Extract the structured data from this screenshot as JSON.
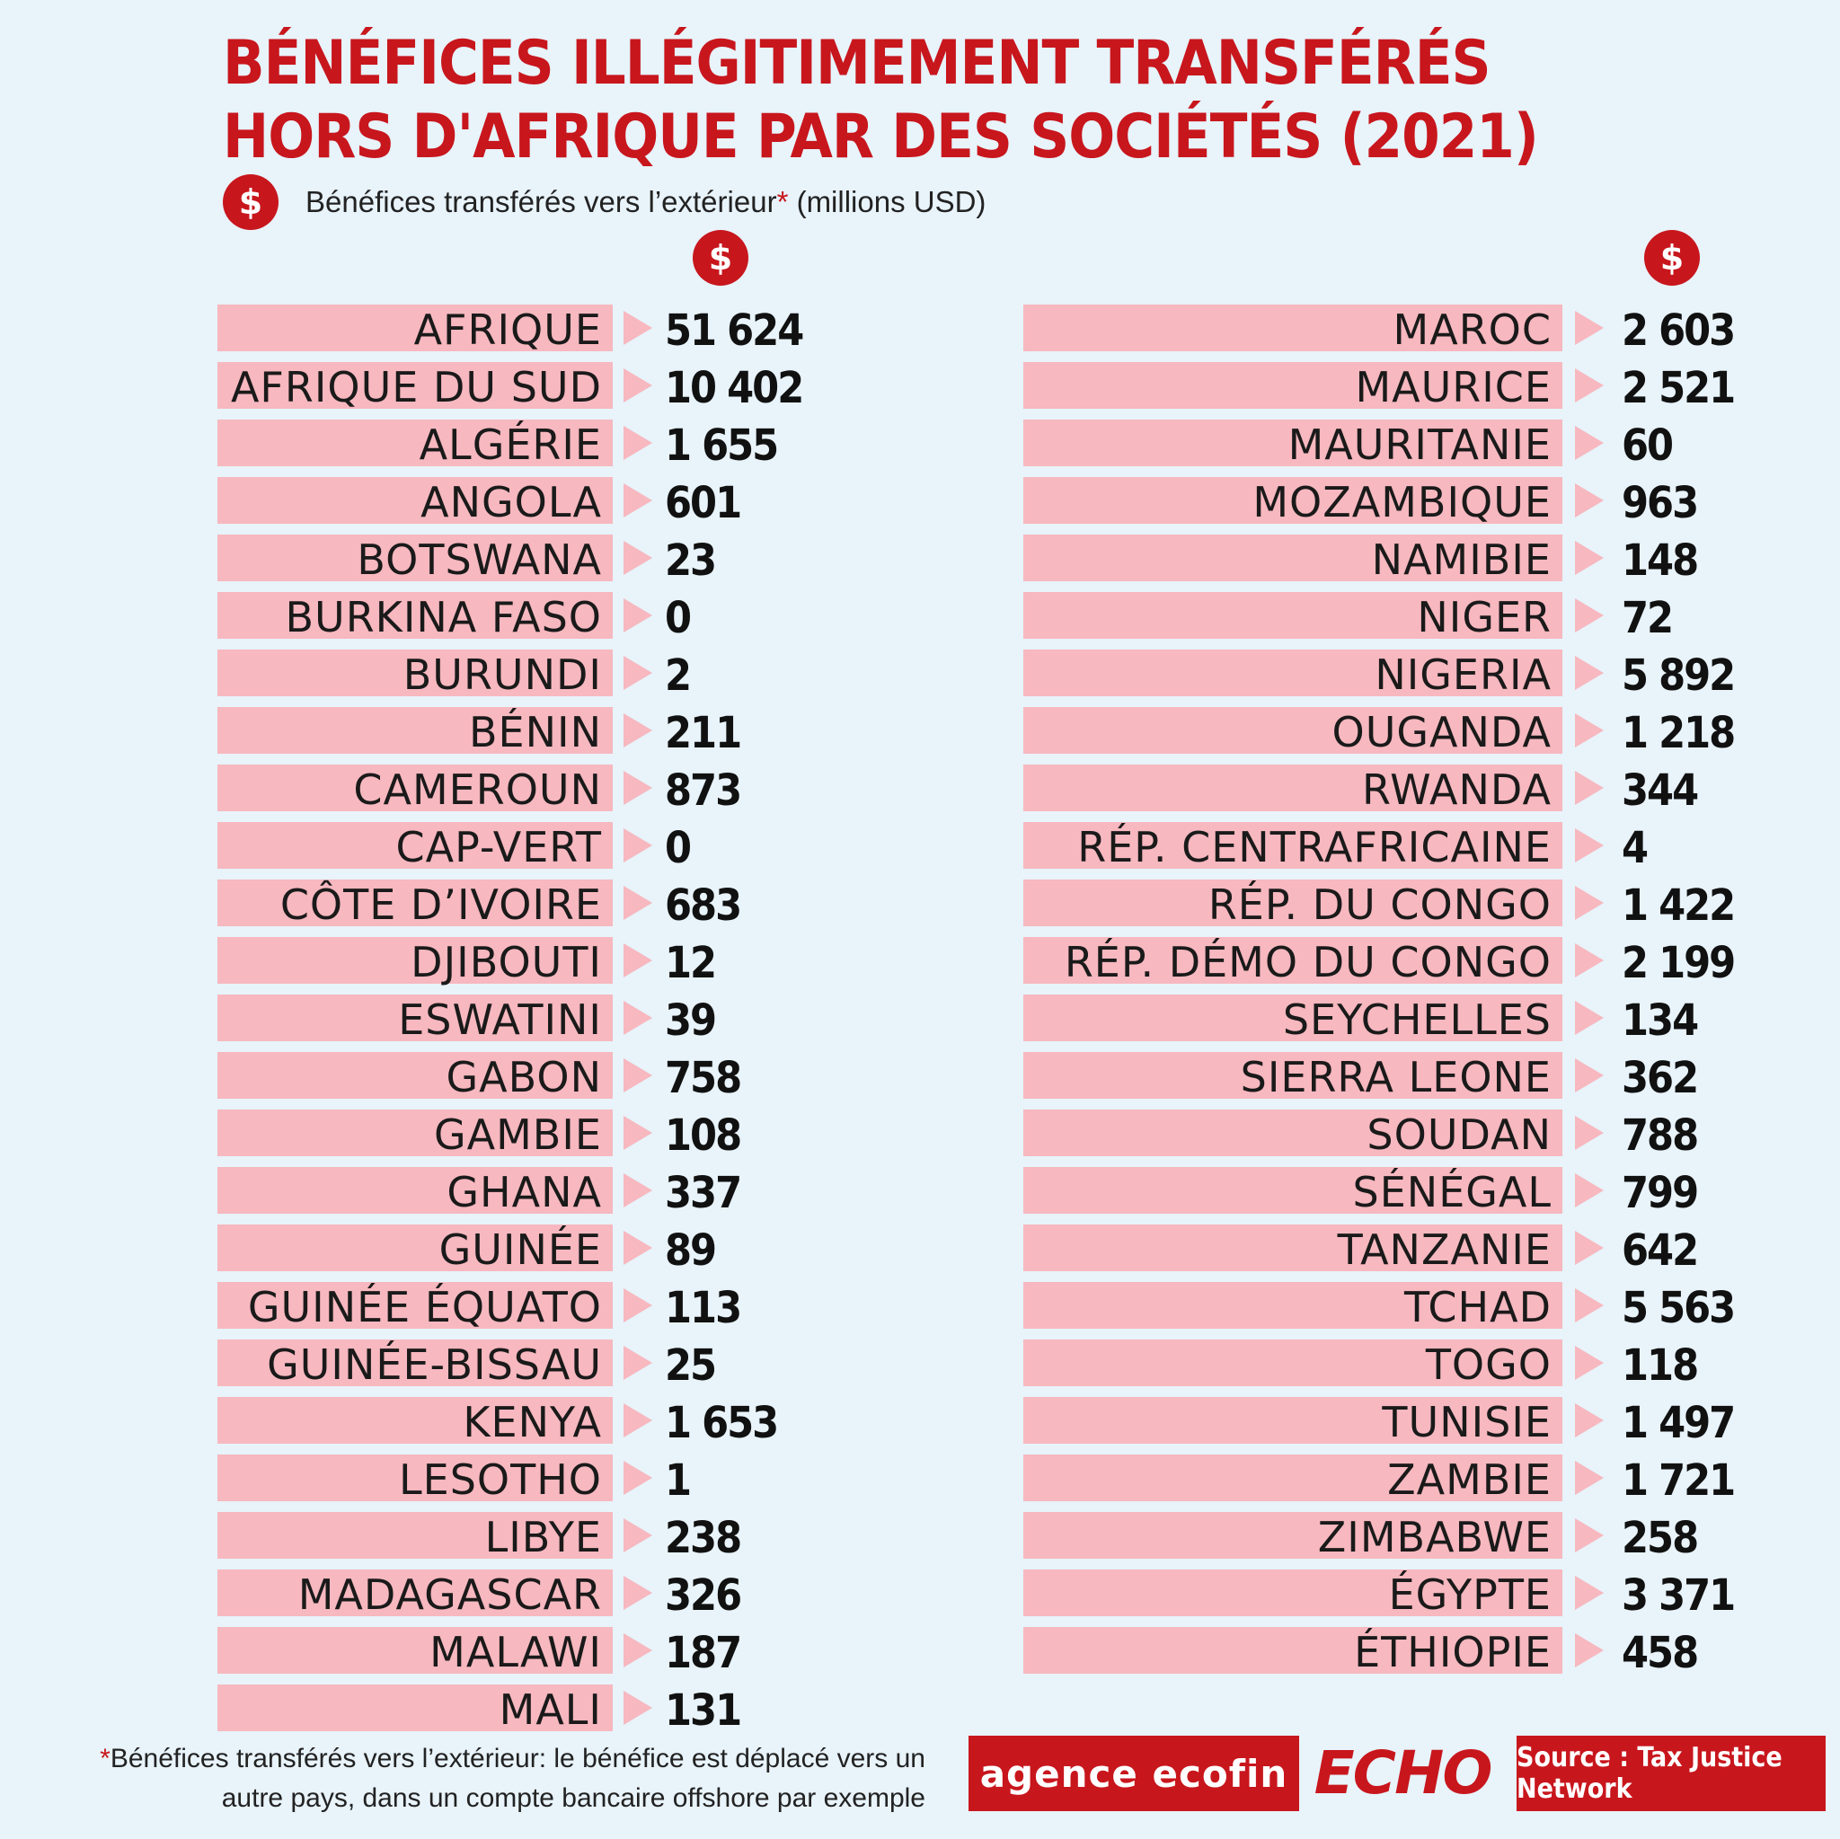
{
  "header": {
    "title_line1": "BÉNÉFICES ILLÉGITIMEMENT TRANSFÉRÉS",
    "title_line2": "HORS D'AFRIQUE PAR DES SOCIÉTÉS (2021)",
    "legend_icon": "$",
    "legend_text": "Bénéfices transférés vers l’extérieur",
    "legend_star": "*",
    "legend_unit": "(millions USD)"
  },
  "chart_data": {
    "type": "table",
    "title": "BÉNÉFICES ILLÉGITIMEMENT TRANSFÉRÉS HORS D'AFRIQUE PAR DES SOCIÉTÉS (2021)",
    "value_label": "Bénéfices transférés vers l’extérieur* (millions USD)",
    "columns": [
      [
        {
          "name": "AFRIQUE",
          "value": 51624,
          "label": "51 624"
        },
        {
          "name": "AFRIQUE DU SUD",
          "value": 10402,
          "label": "10 402"
        },
        {
          "name": "ALGÉRIE",
          "value": 1655,
          "label": "1 655"
        },
        {
          "name": "ANGOLA",
          "value": 601,
          "label": "601"
        },
        {
          "name": "BOTSWANA",
          "value": 23,
          "label": "23"
        },
        {
          "name": "BURKINA FASO",
          "value": 0,
          "label": "0"
        },
        {
          "name": "BURUNDI",
          "value": 2,
          "label": "2"
        },
        {
          "name": "BÉNIN",
          "value": 211,
          "label": "211"
        },
        {
          "name": "CAMEROUN",
          "value": 873,
          "label": "873"
        },
        {
          "name": "CAP-VERT",
          "value": 0,
          "label": "0"
        },
        {
          "name": "CÔTE D’IVOIRE",
          "value": 683,
          "label": "683"
        },
        {
          "name": "DJIBOUTI",
          "value": 12,
          "label": "12"
        },
        {
          "name": "ESWATINI",
          "value": 39,
          "label": "39"
        },
        {
          "name": "GABON",
          "value": 758,
          "label": "758"
        },
        {
          "name": "GAMBIE",
          "value": 108,
          "label": "108"
        },
        {
          "name": "GHANA",
          "value": 337,
          "label": "337"
        },
        {
          "name": "GUINÉE",
          "value": 89,
          "label": "89"
        },
        {
          "name": "GUINÉE ÉQUATO",
          "value": 113,
          "label": "113"
        },
        {
          "name": "GUINÉE-BISSAU",
          "value": 25,
          "label": "25"
        },
        {
          "name": "KENYA",
          "value": 1653,
          "label": "1 653"
        },
        {
          "name": "LESOTHO",
          "value": 1,
          "label": "1"
        },
        {
          "name": "LIBYE",
          "value": 238,
          "label": "238"
        },
        {
          "name": "MADAGASCAR",
          "value": 326,
          "label": "326"
        },
        {
          "name": "MALAWI",
          "value": 187,
          "label": "187"
        },
        {
          "name": "MALI",
          "value": 131,
          "label": "131"
        }
      ],
      [
        {
          "name": "MAROC",
          "value": 2603,
          "label": "2 603"
        },
        {
          "name": "MAURICE",
          "value": 2521,
          "label": "2 521"
        },
        {
          "name": "MAURITANIE",
          "value": 60,
          "label": "60"
        },
        {
          "name": "MOZAMBIQUE",
          "value": 963,
          "label": "963"
        },
        {
          "name": "NAMIBIE",
          "value": 148,
          "label": "148"
        },
        {
          "name": "NIGER",
          "value": 72,
          "label": "72"
        },
        {
          "name": "NIGERIA",
          "value": 5892,
          "label": "5 892"
        },
        {
          "name": "OUGANDA",
          "value": 1218,
          "label": "1 218"
        },
        {
          "name": "RWANDA",
          "value": 344,
          "label": "344"
        },
        {
          "name": "RÉP. CENTRAFRICAINE",
          "value": 4,
          "label": "4"
        },
        {
          "name": "RÉP. DU CONGO",
          "value": 1422,
          "label": "1 422"
        },
        {
          "name": "RÉP. DÉMO DU CONGO",
          "value": 2199,
          "label": "2 199"
        },
        {
          "name": "SEYCHELLES",
          "value": 134,
          "label": "134"
        },
        {
          "name": "SIERRA LEONE",
          "value": 362,
          "label": "362"
        },
        {
          "name": "SOUDAN",
          "value": 788,
          "label": "788"
        },
        {
          "name": "SÉNÉGAL",
          "value": 799,
          "label": "799"
        },
        {
          "name": "TANZANIE",
          "value": 642,
          "label": "642"
        },
        {
          "name": "TCHAD",
          "value": 5563,
          "label": "5 563"
        },
        {
          "name": "TOGO",
          "value": 118,
          "label": "118"
        },
        {
          "name": "TUNISIE",
          "value": 1497,
          "label": "1 497"
        },
        {
          "name": "ZAMBIE",
          "value": 1721,
          "label": "1 721"
        },
        {
          "name": "ZIMBABWE",
          "value": 258,
          "label": "258"
        },
        {
          "name": "ÉGYPTE",
          "value": 3371,
          "label": "3 371"
        },
        {
          "name": "ÉTHIOPIE",
          "value": 458,
          "label": "458"
        }
      ]
    ]
  },
  "footer": {
    "footnote_star": "*",
    "footnote_line1": "Bénéfices transférés vers l’extérieur: le bénéfice est déplacé vers un",
    "footnote_line2": "autre pays, dans un compte bancaire offshore par exemple",
    "logo_ecofin": "agence ecofin",
    "logo_echo": "ECHO",
    "source": "Source : Tax Justice Network"
  },
  "colors": {
    "accent": "#c8161d",
    "bar": "#f7b8bf",
    "background": "#e8f3fa"
  }
}
